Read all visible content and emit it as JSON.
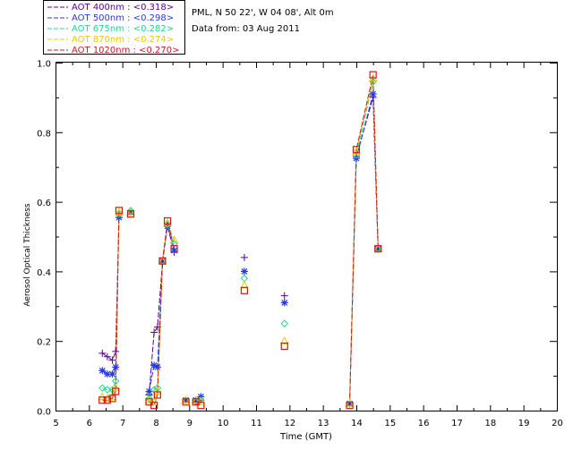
{
  "header": {
    "site": "PML, N 50 22', W 04 08', Alt 0m",
    "date": "Data from: 03 Aug 2011"
  },
  "legend": [
    {
      "label": "AOT  400nm : <0.318>",
      "color": "#5a008c"
    },
    {
      "label": "AOT  500nm : <0.298>",
      "color": "#2838e0"
    },
    {
      "label": "AOT  675nm : <0.282>",
      "color": "#20d890"
    },
    {
      "label": "AOT  870nm : <0.274>",
      "color": "#f0c800"
    },
    {
      "label": "AOT 1020nm : <0.270>",
      "color": "#d01820"
    }
  ],
  "chart_data": {
    "type": "scatter",
    "xlabel": "Time (GMT)",
    "ylabel": "Aerosol Optical Thickness",
    "xlim": [
      5,
      20
    ],
    "ylim": [
      0.0,
      1.0
    ],
    "xticks": [
      "5",
      "6",
      "7",
      "8",
      "9",
      "10",
      "11",
      "12",
      "13",
      "14",
      "15",
      "16",
      "17",
      "18",
      "19",
      "20"
    ],
    "yticks": [
      "0.0",
      "0.2",
      "0.4",
      "0.6",
      "0.8",
      "1.0"
    ],
    "grid": false,
    "series": [
      {
        "name": "AOT  400nm",
        "color": "#5a008c",
        "marker": "+",
        "x": [
          6.4,
          6.55,
          6.7,
          6.8,
          6.9,
          7.25,
          7.8,
          7.95,
          8.05,
          8.2,
          8.35,
          8.55,
          8.9,
          9.2,
          9.35,
          10.65,
          11.85,
          13.8,
          14.0,
          14.5,
          14.65
        ],
        "y": [
          0.165,
          0.155,
          0.145,
          0.17,
          0.555,
          0.57,
          0.045,
          0.225,
          0.24,
          0.425,
          0.53,
          0.455,
          0.03,
          0.025,
          0.03,
          0.44,
          0.33,
          0.02,
          0.73,
          0.9,
          0.465
        ]
      },
      {
        "name": "AOT  500nm",
        "color": "#2838e0",
        "marker": "*",
        "x": [
          6.4,
          6.55,
          6.7,
          6.8,
          6.9,
          7.25,
          7.8,
          7.95,
          8.05,
          8.2,
          8.35,
          8.55,
          8.9,
          9.2,
          9.35,
          10.65,
          11.85,
          13.8,
          14.0,
          14.5,
          14.65
        ],
        "y": [
          0.115,
          0.105,
          0.105,
          0.125,
          0.555,
          0.57,
          0.055,
          0.13,
          0.125,
          0.43,
          0.53,
          0.46,
          0.03,
          0.03,
          0.04,
          0.4,
          0.31,
          0.02,
          0.725,
          0.91,
          0.465
        ]
      },
      {
        "name": "AOT  675nm",
        "color": "#20d890",
        "marker": "diamond",
        "x": [
          6.4,
          6.55,
          6.7,
          6.8,
          6.9,
          7.25,
          7.8,
          7.95,
          8.05,
          8.2,
          8.35,
          8.55,
          8.9,
          9.2,
          9.35,
          10.65,
          11.85,
          13.8,
          14.0,
          14.5,
          14.65
        ],
        "y": [
          0.065,
          0.06,
          0.06,
          0.085,
          0.565,
          0.575,
          0.035,
          0.06,
          0.065,
          0.43,
          0.535,
          0.48,
          0.03,
          0.025,
          0.03,
          0.38,
          0.25,
          0.02,
          0.735,
          0.945,
          0.465
        ]
      },
      {
        "name": "AOT  870nm",
        "color": "#f0c800",
        "marker": "triangle",
        "x": [
          6.4,
          6.55,
          6.7,
          6.8,
          6.9,
          7.25,
          7.8,
          7.95,
          8.05,
          8.2,
          8.35,
          8.55,
          8.9,
          9.2,
          9.35,
          10.65,
          11.85,
          13.8,
          14.0,
          14.5,
          14.65
        ],
        "y": [
          0.04,
          0.035,
          0.04,
          0.065,
          0.57,
          0.57,
          0.03,
          0.025,
          0.055,
          0.43,
          0.54,
          0.49,
          0.03,
          0.03,
          0.025,
          0.36,
          0.2,
          0.02,
          0.745,
          0.955,
          0.465
        ]
      },
      {
        "name": "AOT 1020nm",
        "color": "#d01820",
        "marker": "square",
        "x": [
          6.4,
          6.55,
          6.7,
          6.8,
          6.9,
          7.25,
          7.8,
          7.95,
          8.05,
          8.2,
          8.35,
          8.55,
          8.9,
          9.2,
          9.35,
          10.65,
          11.85,
          13.8,
          14.0,
          14.5,
          14.65
        ],
        "y": [
          0.03,
          0.03,
          0.035,
          0.055,
          0.575,
          0.565,
          0.025,
          0.015,
          0.045,
          0.43,
          0.545,
          0.465,
          0.025,
          0.025,
          0.015,
          0.345,
          0.185,
          0.015,
          0.75,
          0.965,
          0.465
        ]
      }
    ],
    "connected_segments": [
      [
        0,
        4
      ],
      [
        6,
        11
      ],
      [
        17,
        20
      ]
    ]
  }
}
